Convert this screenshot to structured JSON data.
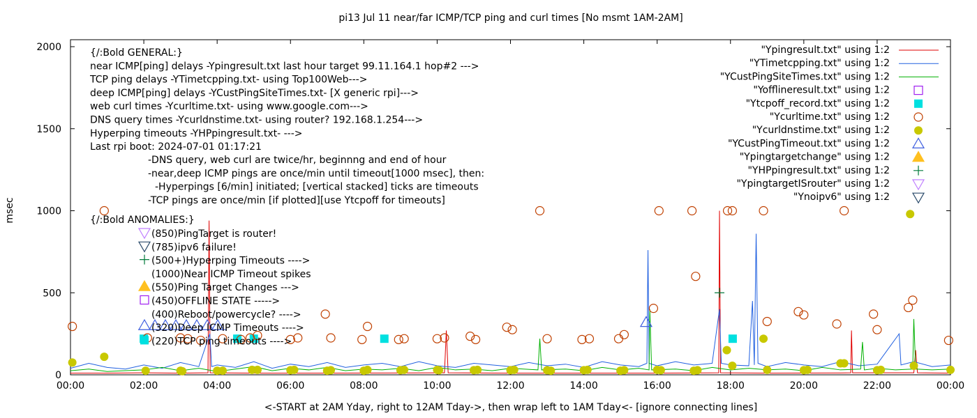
{
  "chart_data": {
    "type": "line",
    "title": "pi13 Jul 11  near/far ICMP/TCP ping and curl times [No msmt 1AM-2AM]",
    "xlabel": "<-START at 2AM Yday, right to 12AM Tday->, then wrap left to 1AM Tday<- [ignore connecting lines]",
    "ylabel": "msec",
    "xlim": [
      0,
      24
    ],
    "ylim": [
      0,
      2050
    ],
    "x_unit": "hour of day",
    "xticks": [
      "00:00",
      "02:00",
      "04:00",
      "06:00",
      "08:00",
      "10:00",
      "12:00",
      "14:00",
      "16:00",
      "18:00",
      "20:00",
      "22:00",
      "00:00"
    ],
    "yticks": [
      0,
      500,
      1000,
      1500,
      2000
    ],
    "grid": false,
    "legend_placement": "top-right",
    "annotations": {
      "general": [
        "{/:Bold GENERAL:}",
        "near ICMP[ping] delays -Ypingresult.txt last hour target 99.11.164.1 hop#2 --->",
        "TCP ping delays -YTimetcpping.txt- using Top100Web--->",
        "deep ICMP[ping] delays -YCustPingSiteTimes.txt- [X generic rpi]--->",
        "web curl times -Ycurltime.txt- using www.google.com--->",
        "DNS query times -Ycurldnstime.txt- using router? 192.168.1.254--->",
        "Hyperping timeouts -YHPpingresult.txt- --->",
        "Last rpi boot: 2024-07-01 01:17:21"
      ],
      "notes": [
        "-DNS query, web curl are twice/hr, beginnng and end of hour",
        "-near,deep ICMP pings are once/min until timeout[1000 msec], then:",
        "-Hyperpings [6/min] initiated; [vertical stacked] ticks are timeouts",
        "-TCP pings are once/min [if plotted][use Ytcpoff for timeouts]"
      ],
      "anomalies_title": "{/:Bold ANOMALIES:}",
      "anomalies": [
        {
          "symbol": "triangle-down-open",
          "color": "#c080ff",
          "text": "(850)PingTarget is router!"
        },
        {
          "symbol": "triangle-down-open",
          "color": "#2a4a6a",
          "text": "(785)ipv6 failure!"
        },
        {
          "symbol": "plus",
          "color": "#007a3a",
          "text": "(500+)Hyperping Timeouts ---->"
        },
        {
          "symbol": "none",
          "color": "",
          "text": "(1000)Near ICMP Timeout spikes"
        },
        {
          "symbol": "triangle-up-filled",
          "color": "#ffc020",
          "text": "(550)Ping Target Changes --->"
        },
        {
          "symbol": "square-open",
          "color": "#a020f0",
          "text": "(450)OFFLINE STATE ----->"
        },
        {
          "symbol": "none",
          "color": "",
          "text": "(400)Reboot/powercycle? ---->"
        },
        {
          "symbol": "triangle-up-open",
          "color": "#4060e0",
          "text": "(320)Deep ICMP Timeouts ---->"
        },
        {
          "symbol": "square-filled",
          "color": "#00e0e0",
          "text": "(220)TCP ping timeouts ---->"
        }
      ]
    },
    "series": [
      {
        "name": "\"Ypingresult.txt\" using 1:2",
        "style": "line",
        "color": "#e00000",
        "points": [
          [
            0,
            10
          ],
          [
            1,
            10
          ],
          [
            2,
            12
          ],
          [
            3,
            10
          ],
          [
            3.75,
            12
          ],
          [
            3.78,
            940
          ],
          [
            3.81,
            12
          ],
          [
            5,
            10
          ],
          [
            7,
            10
          ],
          [
            9,
            11
          ],
          [
            10.2,
            12
          ],
          [
            10.25,
            270
          ],
          [
            10.3,
            12
          ],
          [
            12,
            10
          ],
          [
            14,
            10
          ],
          [
            16,
            10
          ],
          [
            17.68,
            12
          ],
          [
            17.7,
            1000
          ],
          [
            17.73,
            12
          ],
          [
            19,
            10
          ],
          [
            21,
            11
          ],
          [
            21.28,
            12
          ],
          [
            21.3,
            270
          ],
          [
            21.33,
            12
          ],
          [
            23,
            12
          ],
          [
            23.05,
            150
          ],
          [
            23.1,
            12
          ],
          [
            24,
            10
          ]
        ]
      },
      {
        "name": "\"YTimetcpping.txt\" using 1:2",
        "style": "line",
        "color": "#2060e0",
        "points": [
          [
            0,
            40
          ],
          [
            0.5,
            70
          ],
          [
            1,
            45
          ],
          [
            1.5,
            35
          ],
          [
            2,
            60
          ],
          [
            2.5,
            40
          ],
          [
            3,
            75
          ],
          [
            3.5,
            50
          ],
          [
            3.8,
            250
          ],
          [
            3.85,
            50
          ],
          [
            4,
            60
          ],
          [
            4.5,
            45
          ],
          [
            5,
            80
          ],
          [
            5.5,
            40
          ],
          [
            6,
            65
          ],
          [
            6.5,
            50
          ],
          [
            7,
            75
          ],
          [
            7.5,
            45
          ],
          [
            8,
            60
          ],
          [
            8.5,
            70
          ],
          [
            9,
            50
          ],
          [
            9.5,
            80
          ],
          [
            10,
            55
          ],
          [
            10.5,
            45
          ],
          [
            11,
            70
          ],
          [
            11.5,
            60
          ],
          [
            12,
            50
          ],
          [
            12.5,
            75
          ],
          [
            13,
            55
          ],
          [
            13.5,
            65
          ],
          [
            14,
            45
          ],
          [
            14.5,
            80
          ],
          [
            15,
            60
          ],
          [
            15.5,
            50
          ],
          [
            15.72,
            70
          ],
          [
            15.75,
            760
          ],
          [
            15.78,
            70
          ],
          [
            16,
            55
          ],
          [
            16.5,
            80
          ],
          [
            17,
            60
          ],
          [
            17.5,
            70
          ],
          [
            17.7,
            400
          ],
          [
            17.75,
            70
          ],
          [
            18,
            60
          ],
          [
            18.5,
            55
          ],
          [
            18.6,
            450
          ],
          [
            18.65,
            60
          ],
          [
            18.7,
            860
          ],
          [
            18.75,
            70
          ],
          [
            19,
            50
          ],
          [
            19.5,
            75
          ],
          [
            20,
            60
          ],
          [
            20.5,
            50
          ],
          [
            21,
            80
          ],
          [
            21.5,
            55
          ],
          [
            22,
            65
          ],
          [
            22.6,
            250
          ],
          [
            22.65,
            60
          ],
          [
            23,
            80
          ],
          [
            23.5,
            50
          ],
          [
            24,
            60
          ]
        ]
      },
      {
        "name": "\"YCustPingSiteTimes.txt\" using 1:2",
        "style": "line",
        "color": "#00b000",
        "points": [
          [
            0,
            25
          ],
          [
            0.5,
            35
          ],
          [
            1,
            20
          ],
          [
            2,
            30
          ],
          [
            2.5,
            45
          ],
          [
            3,
            25
          ],
          [
            3.5,
            40
          ],
          [
            4,
            20
          ],
          [
            4.5,
            35
          ],
          [
            5,
            50
          ],
          [
            5.5,
            25
          ],
          [
            6,
            40
          ],
          [
            6.5,
            30
          ],
          [
            7,
            45
          ],
          [
            7.5,
            25
          ],
          [
            8,
            35
          ],
          [
            8.5,
            30
          ],
          [
            9,
            40
          ],
          [
            9.5,
            25
          ],
          [
            10,
            45
          ],
          [
            10.5,
            30
          ],
          [
            11,
            35
          ],
          [
            11.5,
            25
          ],
          [
            12,
            40
          ],
          [
            12.75,
            30
          ],
          [
            12.8,
            220
          ],
          [
            12.85,
            30
          ],
          [
            13.5,
            35
          ],
          [
            14,
            25
          ],
          [
            14.5,
            45
          ],
          [
            15,
            30
          ],
          [
            15.5,
            40
          ],
          [
            15.78,
            30
          ],
          [
            15.8,
            400
          ],
          [
            15.85,
            30
          ],
          [
            16.5,
            35
          ],
          [
            17,
            25
          ],
          [
            17.5,
            45
          ],
          [
            18,
            30
          ],
          [
            18.5,
            40
          ],
          [
            19,
            30
          ],
          [
            19.5,
            35
          ],
          [
            20,
            25
          ],
          [
            20.5,
            45
          ],
          [
            21,
            30
          ],
          [
            21.55,
            35
          ],
          [
            21.6,
            200
          ],
          [
            21.65,
            30
          ],
          [
            22,
            40
          ],
          [
            22.5,
            30
          ],
          [
            22.97,
            35
          ],
          [
            23,
            340
          ],
          [
            23.05,
            35
          ],
          [
            23.5,
            30
          ],
          [
            24,
            35
          ]
        ]
      },
      {
        "name": "\"Yofflineresult.txt\" using 1:2",
        "style": "square-open",
        "color": "#a020f0",
        "points": []
      },
      {
        "name": "\"Ytcpoff_record.txt\" using 1:2",
        "style": "square-filled",
        "color": "#00e0e0",
        "points": [
          [
            2.0,
            220
          ],
          [
            4.55,
            220
          ],
          [
            5.0,
            220
          ],
          [
            8.56,
            220
          ],
          [
            18.06,
            220
          ]
        ]
      },
      {
        "name": "\"Ycurltime.txt\" using 1:2",
        "style": "circle-open",
        "color": "#c04000",
        "points": [
          [
            0.05,
            295
          ],
          [
            0.92,
            1000
          ],
          [
            2.1,
            225
          ],
          [
            3.0,
            225
          ],
          [
            3.2,
            220
          ],
          [
            3.55,
            210
          ],
          [
            4.15,
            220
          ],
          [
            4.65,
            215
          ],
          [
            4.9,
            225
          ],
          [
            5.1,
            240
          ],
          [
            6.0,
            215
          ],
          [
            6.2,
            225
          ],
          [
            6.95,
            370
          ],
          [
            7.1,
            225
          ],
          [
            7.95,
            215
          ],
          [
            8.1,
            295
          ],
          [
            8.95,
            215
          ],
          [
            9.1,
            220
          ],
          [
            10.0,
            220
          ],
          [
            10.2,
            225
          ],
          [
            10.9,
            235
          ],
          [
            11.05,
            215
          ],
          [
            11.9,
            290
          ],
          [
            12.05,
            275
          ],
          [
            12.8,
            1000
          ],
          [
            13.0,
            220
          ],
          [
            13.95,
            215
          ],
          [
            14.15,
            220
          ],
          [
            14.95,
            220
          ],
          [
            15.1,
            245
          ],
          [
            15.9,
            405
          ],
          [
            16.05,
            1000
          ],
          [
            16.95,
            1000
          ],
          [
            17.05,
            600
          ],
          [
            17.92,
            1000
          ],
          [
            18.05,
            1000
          ],
          [
            18.9,
            1000
          ],
          [
            19.0,
            325
          ],
          [
            19.85,
            385
          ],
          [
            20.0,
            365
          ],
          [
            20.9,
            310
          ],
          [
            21.1,
            1000
          ],
          [
            21.9,
            370
          ],
          [
            22.0,
            275
          ],
          [
            22.85,
            410
          ],
          [
            22.97,
            455
          ],
          [
            23.95,
            210
          ]
        ]
      },
      {
        "name": "\"Ycurldnstime.txt\" using 1:2",
        "style": "circle-filled",
        "color": "#c8c800",
        "points": [
          [
            0.05,
            75
          ],
          [
            0.92,
            110
          ],
          [
            2.05,
            25
          ],
          [
            3.0,
            25
          ],
          [
            3.05,
            22
          ],
          [
            4.0,
            25
          ],
          [
            4.15,
            25
          ],
          [
            4.95,
            30
          ],
          [
            5.1,
            30
          ],
          [
            6.0,
            28
          ],
          [
            6.1,
            30
          ],
          [
            7.0,
            25
          ],
          [
            7.1,
            28
          ],
          [
            8.0,
            25
          ],
          [
            8.1,
            30
          ],
          [
            9.0,
            28
          ],
          [
            9.1,
            30
          ],
          [
            10.0,
            30
          ],
          [
            10.05,
            28
          ],
          [
            11.0,
            28
          ],
          [
            11.1,
            30
          ],
          [
            12.0,
            28
          ],
          [
            12.1,
            30
          ],
          [
            13.0,
            28
          ],
          [
            13.1,
            25
          ],
          [
            14.0,
            28
          ],
          [
            14.1,
            30
          ],
          [
            15.0,
            25
          ],
          [
            15.1,
            28
          ],
          [
            16.0,
            30
          ],
          [
            16.1,
            28
          ],
          [
            17.0,
            25
          ],
          [
            17.1,
            28
          ],
          [
            17.9,
            150
          ],
          [
            18.05,
            55
          ],
          [
            18.9,
            220
          ],
          [
            19.0,
            30
          ],
          [
            20.0,
            28
          ],
          [
            20.1,
            30
          ],
          [
            21.0,
            70
          ],
          [
            21.1,
            70
          ],
          [
            22.0,
            28
          ],
          [
            22.1,
            30
          ],
          [
            22.9,
            980
          ],
          [
            23.0,
            55
          ],
          [
            24.0,
            30
          ]
        ]
      },
      {
        "name": "\"YCustPingTimeout.txt\" using 1:2",
        "style": "triangle-up-open",
        "color": "#4060e0",
        "points": [
          [
            15.7,
            320
          ]
        ]
      },
      {
        "name": "\"Ypingtargetchange\" using 1:2",
        "style": "triangle-up-filled",
        "color": "#ffc020",
        "points": []
      },
      {
        "name": "\"YHPpingresult.txt\" using 1:2",
        "style": "plus",
        "color": "#007a3a",
        "points": [
          [
            17.7,
            500
          ]
        ]
      },
      {
        "name": "\"YpingtargetISrouter\" using 1:2",
        "style": "triangle-down-open",
        "color": "#c080ff",
        "points": []
      },
      {
        "name": "\"Ynoipv6\" using 1:2",
        "style": "triangle-down-open",
        "color": "#2a4a6a",
        "points": []
      }
    ]
  }
}
